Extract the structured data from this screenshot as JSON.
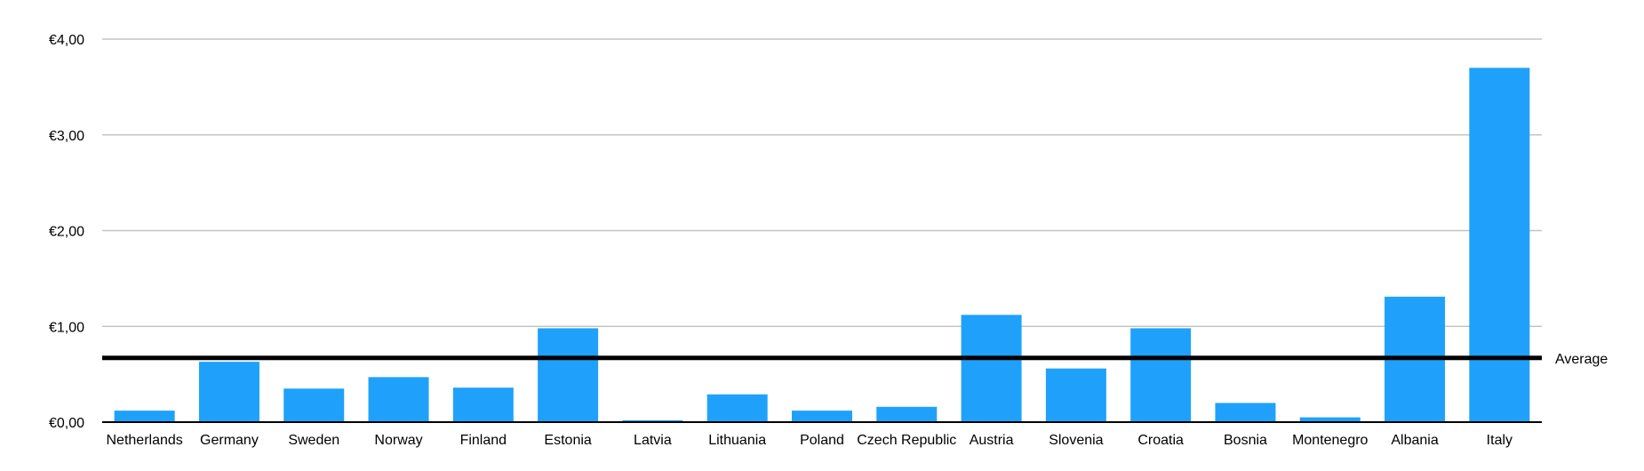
{
  "chart_data": {
    "type": "bar",
    "categories": [
      "Netherlands",
      "Germany",
      "Sweden",
      "Norway",
      "Finland",
      "Estonia",
      "Latvia",
      "Lithuania",
      "Poland",
      "Czech Republic",
      "Austria",
      "Slovenia",
      "Croatia",
      "Bosnia",
      "Montenegro",
      "Albania",
      "Italy"
    ],
    "values": [
      0.12,
      0.63,
      0.35,
      0.47,
      0.36,
      0.98,
      0.02,
      0.29,
      0.12,
      0.16,
      1.12,
      0.56,
      0.98,
      0.2,
      0.05,
      1.31,
      3.7
    ],
    "ylim": [
      0,
      4
    ],
    "yticks": [
      0,
      1,
      2,
      3,
      4
    ],
    "ytick_labels": [
      "€0,00",
      "€1,00",
      "€2,00",
      "€3,00",
      "€4,00"
    ],
    "grid": true,
    "bar_color": "#1fa1fb",
    "reference_line": {
      "label": "Average",
      "value": 0.67,
      "color": "#000000"
    }
  }
}
